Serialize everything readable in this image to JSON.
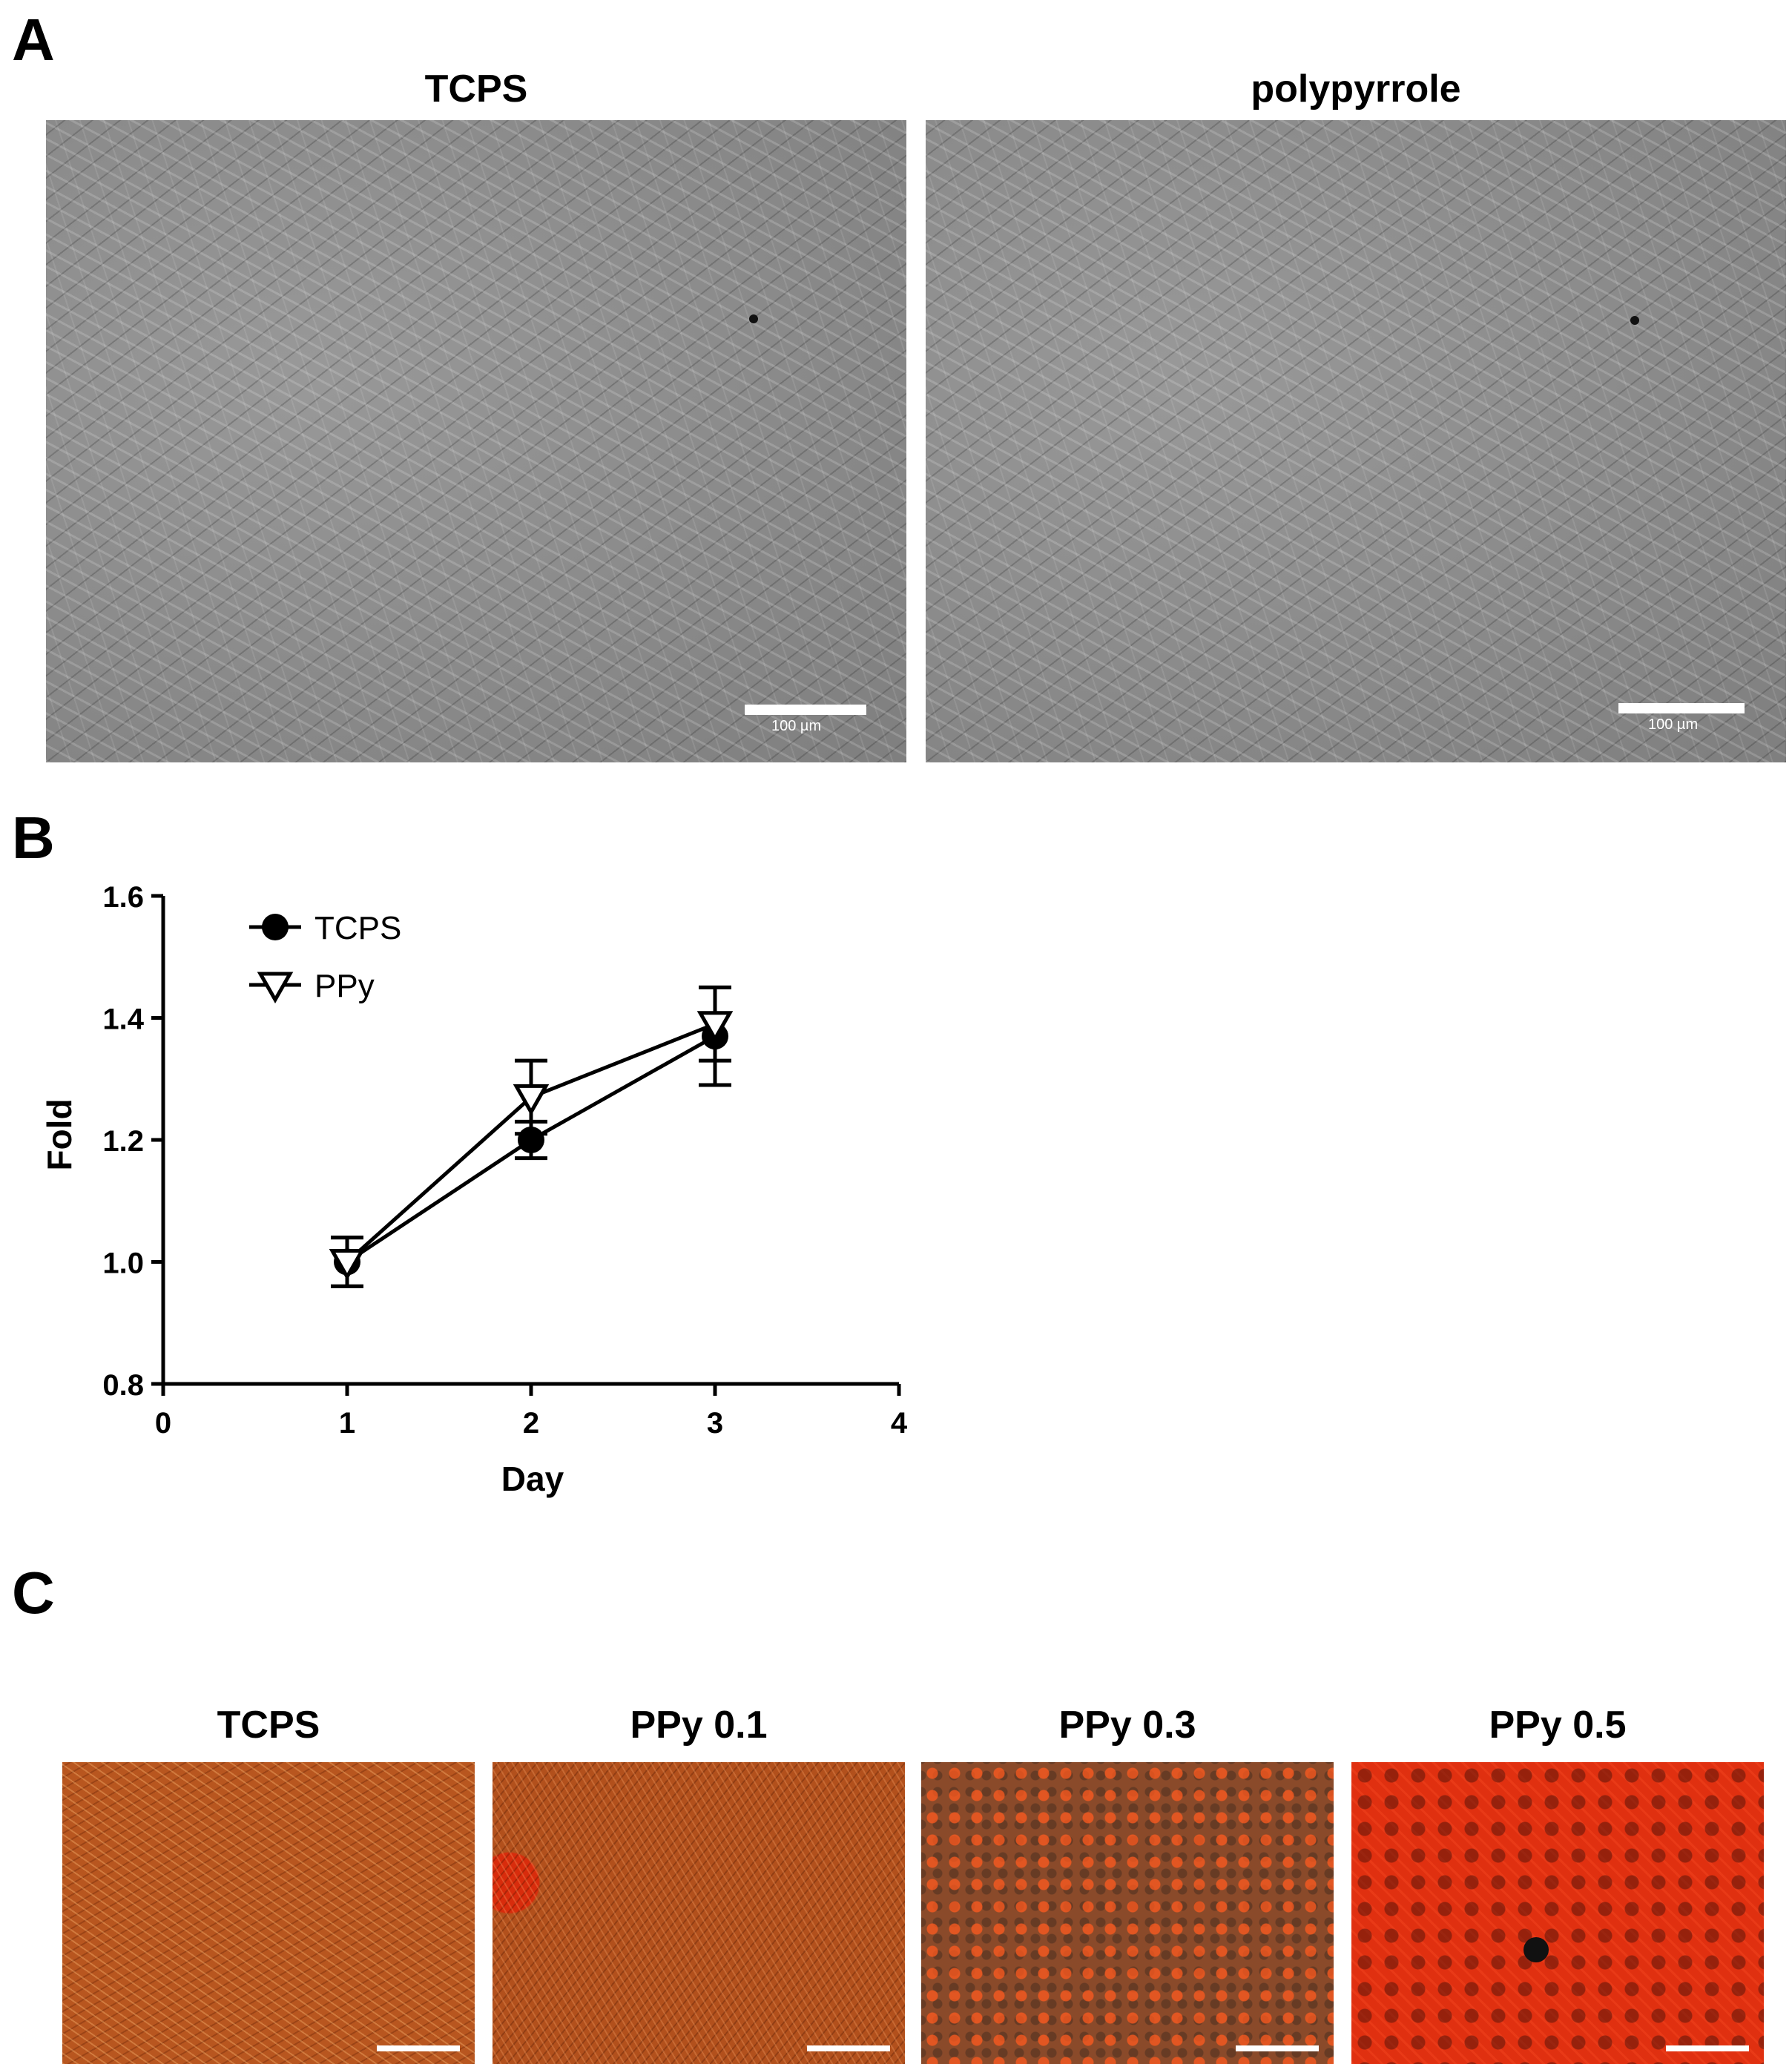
{
  "panels": {
    "A": {
      "letter": "A",
      "images": [
        {
          "title": "TCPS",
          "scale_label": "100 µm"
        },
        {
          "title": "polypyrrole",
          "scale_label": "100 µm"
        }
      ]
    },
    "B": {
      "letter": "B"
    },
    "C": {
      "letter": "C",
      "images": [
        {
          "title": "TCPS"
        },
        {
          "title": "PPy 0.1"
        },
        {
          "title": "PPy 0.3"
        },
        {
          "title": "PPy 0.5"
        }
      ]
    }
  },
  "chart_data": {
    "type": "line",
    "title": "",
    "xlabel": "Day",
    "ylabel": "Fold",
    "xlim": [
      0,
      4
    ],
    "ylim": [
      0.8,
      1.6
    ],
    "xticks": [
      0,
      1,
      2,
      3,
      4
    ],
    "yticks": [
      0.8,
      1.0,
      1.2,
      1.4,
      1.6
    ],
    "ytick_labels": [
      "0.8",
      "1.0",
      "1.2",
      "1.4",
      "1.6"
    ],
    "legend_position": "top-left",
    "series": [
      {
        "name": "TCPS",
        "marker": "filled-circle",
        "x": [
          1,
          2,
          3
        ],
        "y": [
          1.0,
          1.2,
          1.37
        ],
        "err": [
          0.04,
          0.03,
          0.08
        ]
      },
      {
        "name": "PPy",
        "marker": "open-down-triangle",
        "x": [
          1,
          2,
          3
        ],
        "y": [
          1.0,
          1.27,
          1.39
        ],
        "err": [
          0.04,
          0.06,
          0.06
        ]
      }
    ]
  }
}
